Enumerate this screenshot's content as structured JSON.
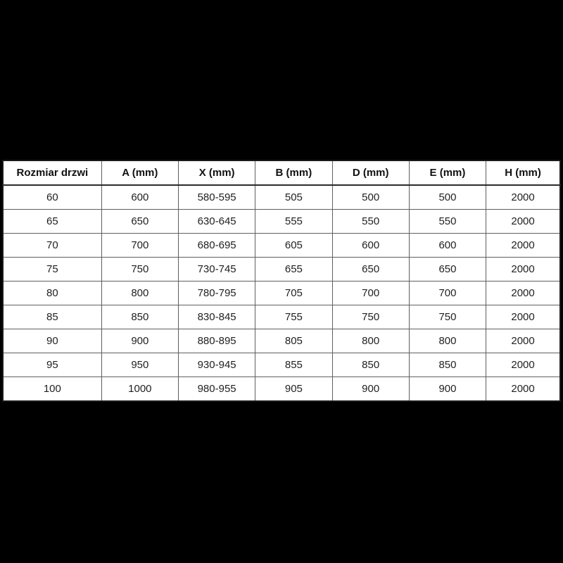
{
  "page": {
    "background_color": "#000000",
    "table_bg_color": "#ffffff",
    "border_color": "#5f5f5f",
    "outer_border_color": "#1a1a1a",
    "text_color": "#1f1f1f"
  },
  "table": {
    "columns": [
      "Rozmiar drzwi",
      "A (mm)",
      "X (mm)",
      "B (mm)",
      "D (mm)",
      "E (mm)",
      "H (mm)"
    ],
    "rows": [
      [
        "60",
        "600",
        "580-595",
        "505",
        "500",
        "500",
        "2000"
      ],
      [
        "65",
        "650",
        "630-645",
        "555",
        "550",
        "550",
        "2000"
      ],
      [
        "70",
        "700",
        "680-695",
        "605",
        "600",
        "600",
        "2000"
      ],
      [
        "75",
        "750",
        "730-745",
        "655",
        "650",
        "650",
        "2000"
      ],
      [
        "80",
        "800",
        "780-795",
        "705",
        "700",
        "700",
        "2000"
      ],
      [
        "85",
        "850",
        "830-845",
        "755",
        "750",
        "750",
        "2000"
      ],
      [
        "90",
        "900",
        "880-895",
        "805",
        "800",
        "800",
        "2000"
      ],
      [
        "95",
        "950",
        "930-945",
        "855",
        "850",
        "850",
        "2000"
      ],
      [
        "100",
        "1000",
        "980-955",
        "905",
        "900",
        "900",
        "2000"
      ]
    ]
  }
}
